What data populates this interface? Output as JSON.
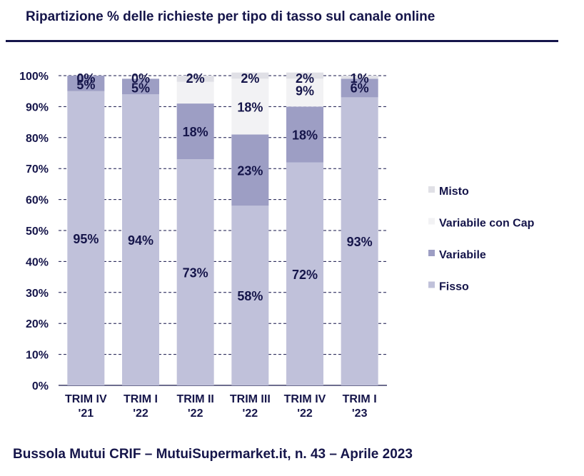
{
  "title": "Ripartizione % delle richieste per tipo di tasso sul canale online",
  "footer": "Bussola Mutui CRIF – MutuiSupermarket.it, n. 43 – Aprile 2023",
  "colors": {
    "Fisso": "#c0c1da",
    "Variabile": "#9d9ec4",
    "Variabile con Cap": "#f2f2f4",
    "Misto": "#e0e0e6",
    "text": "#15154a"
  },
  "chart_data": {
    "type": "bar",
    "stacked": true,
    "categories": [
      "TRIM IV '21",
      "TRIM I '22",
      "TRIM II '22",
      "TRIM III '22",
      "TRIM IV '22",
      "TRIM I '23"
    ],
    "category_lines": [
      [
        "TRIM IV",
        "'21"
      ],
      [
        "TRIM I",
        "'22"
      ],
      [
        "TRIM II",
        "'22"
      ],
      [
        "TRIM III",
        "'22"
      ],
      [
        "TRIM IV",
        "'22"
      ],
      [
        "TRIM I",
        "'23"
      ]
    ],
    "series": [
      {
        "name": "Fisso",
        "values": [
          95,
          94,
          73,
          58,
          72,
          93
        ],
        "labels": [
          "95%",
          "94%",
          "73%",
          "58%",
          "72%",
          "93%"
        ]
      },
      {
        "name": "Variabile",
        "values": [
          5,
          5,
          18,
          23,
          18,
          6
        ],
        "labels": [
          "5%",
          "5%",
          "18%",
          "23%",
          "18%",
          "6%"
        ]
      },
      {
        "name": "Variabile con Cap",
        "values": [
          0,
          0,
          7,
          18,
          9,
          0
        ],
        "labels": [
          "",
          "",
          "",
          "18%",
          "9%",
          ""
        ]
      },
      {
        "name": "Misto",
        "values": [
          0,
          0,
          2,
          2,
          2,
          1
        ],
        "labels": [
          "0%",
          "0%",
          "2%",
          "2%",
          "2%",
          "1%"
        ]
      }
    ],
    "legend_order": [
      "Misto",
      "Variabile con Cap",
      "Variabile",
      "Fisso"
    ],
    "ylim": [
      0,
      100
    ],
    "yticks": [
      0,
      10,
      20,
      30,
      40,
      50,
      60,
      70,
      80,
      90,
      100
    ],
    "ytick_labels": [
      "0%",
      "10%",
      "20%",
      "30%",
      "40%",
      "50%",
      "60%",
      "70%",
      "80%",
      "90%",
      "100%"
    ],
    "grid": "dashed horizontal",
    "legend_position": "right"
  }
}
